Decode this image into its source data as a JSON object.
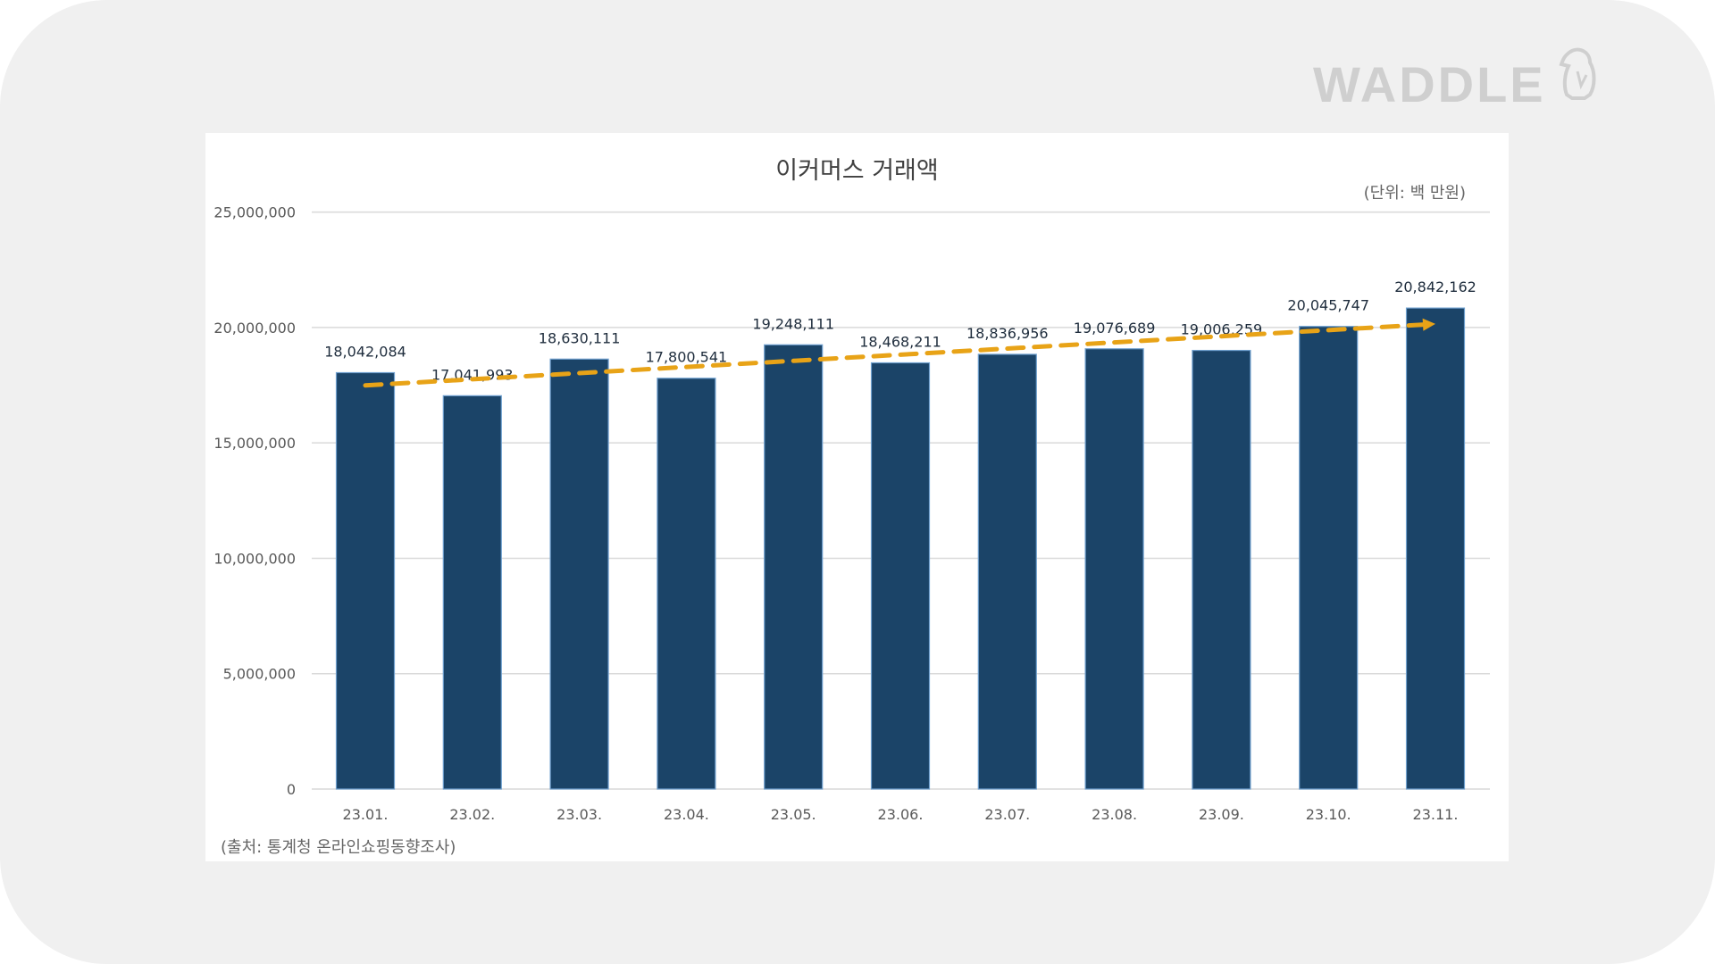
{
  "logo": {
    "text": "WADDLE",
    "icon": "penguin-icon"
  },
  "chart_data": {
    "type": "bar",
    "title": "이커머스 거래액",
    "unit_note": "(단위: 백 만원)",
    "source": "(출처: 통계청 온라인쇼핑동향조사)",
    "categories": [
      "23.01.",
      "23.02.",
      "23.03.",
      "23.04.",
      "23.05.",
      "23.06.",
      "23.07.",
      "23.08.",
      "23.09.",
      "23.10.",
      "23.11."
    ],
    "values": [
      18042084,
      17041993,
      18630111,
      17800541,
      19248111,
      18468211,
      18836956,
      19076689,
      19006259,
      20045747,
      20842162
    ],
    "data_labels": [
      "18,042,084",
      "17,041,993",
      "18,630,111",
      "17,800,541",
      "19,248,111",
      "18,468,211",
      "18,836,956",
      "19,076,689",
      "19,006,259",
      "20,045,747",
      "20,842,162"
    ],
    "ylim": [
      0,
      25000000
    ],
    "yticks": [
      0,
      5000000,
      10000000,
      15000000,
      20000000,
      25000000
    ],
    "ytick_labels": [
      "0",
      "5,000,000",
      "10,000,000",
      "15,000,000",
      "20,000,000",
      "25,000,000"
    ],
    "grid": true,
    "trendline": {
      "type": "linear",
      "style": "dashed-arrow",
      "color": "#e8a317"
    },
    "bar_color": "#1b4468",
    "xlabel": "",
    "ylabel": ""
  }
}
